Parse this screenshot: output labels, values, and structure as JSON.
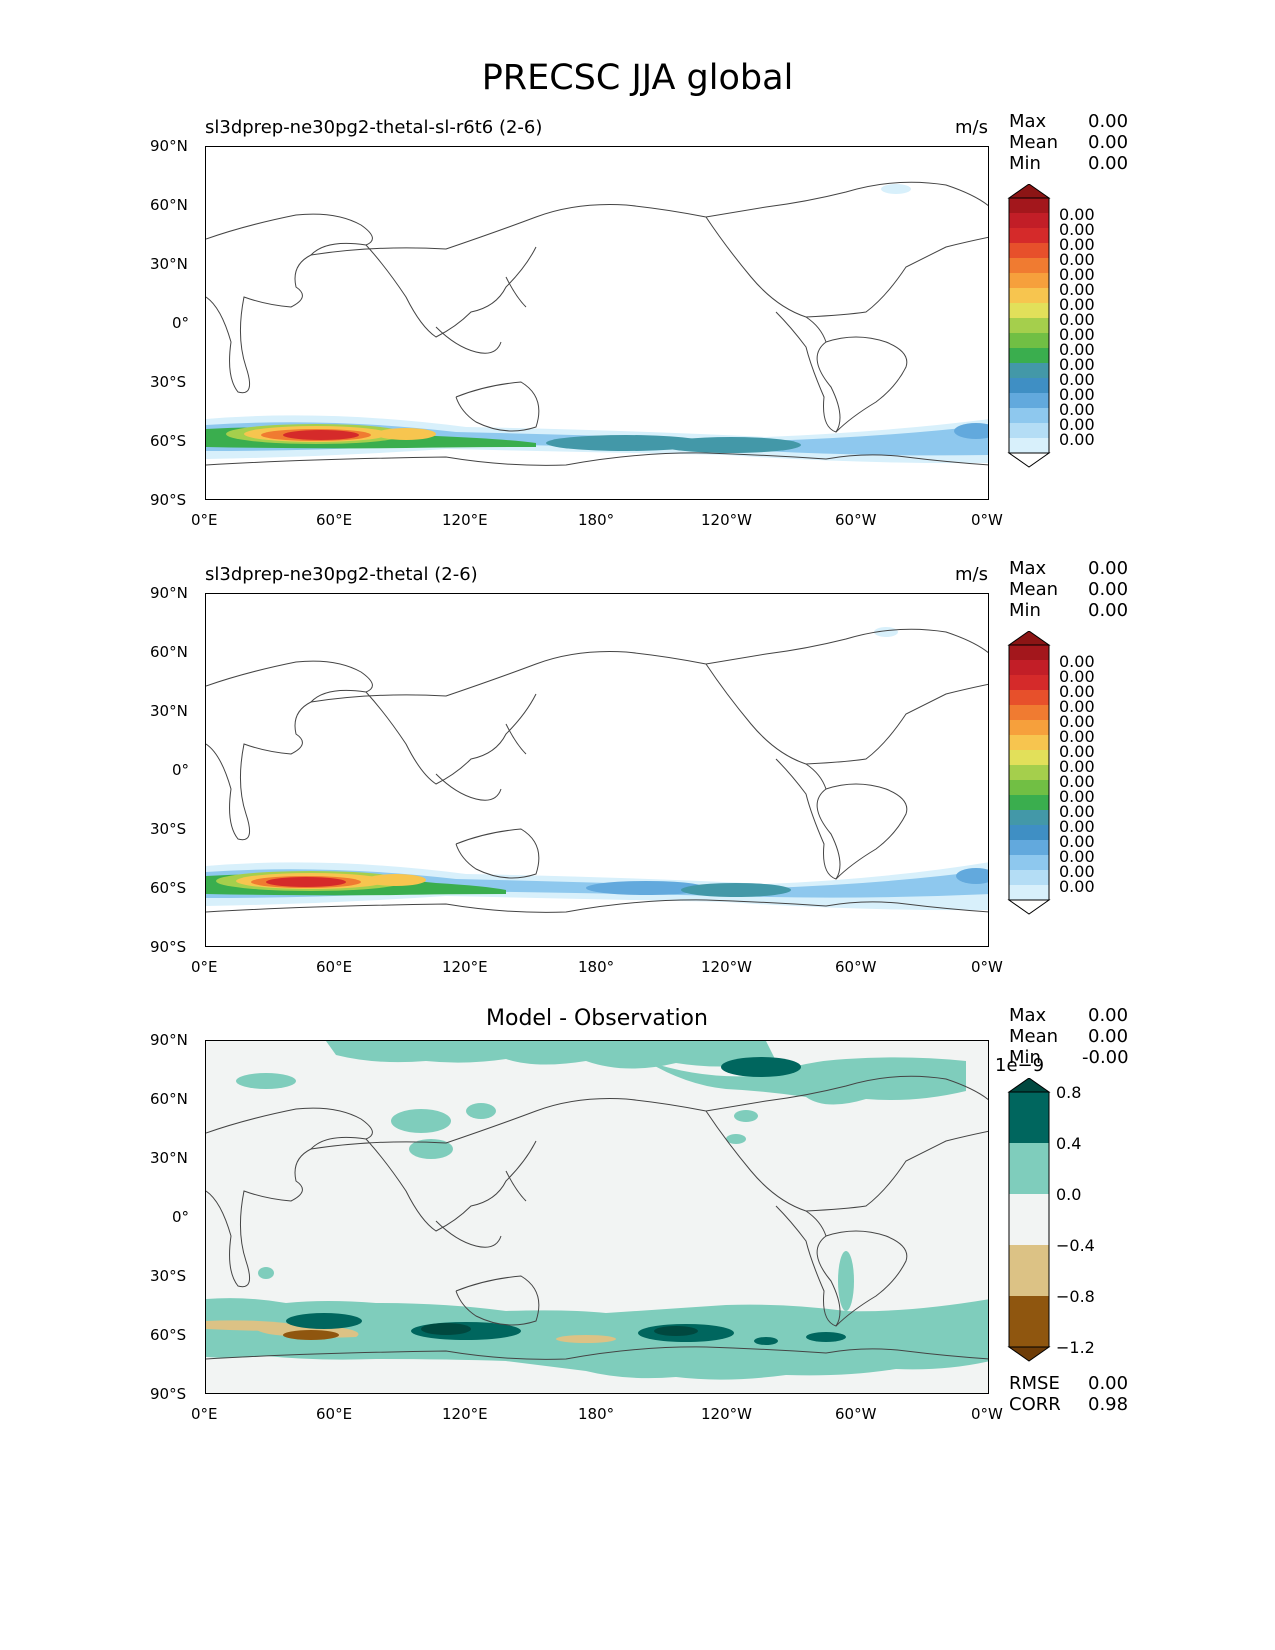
{
  "figure": {
    "title": "PRECSC JJA global"
  },
  "lat_ticks": [
    "90°N",
    "60°N",
    "30°N",
    "0°",
    "30°S",
    "60°S",
    "90°S"
  ],
  "lon_ticks": [
    "0°E",
    "60°E",
    "120°E",
    "180°",
    "120°W",
    "60°W",
    "0°W"
  ],
  "stat_labels": {
    "max": "Max",
    "mean": "Mean",
    "min": "Min",
    "rmse": "RMSE",
    "corr": "CORR"
  },
  "colors": {
    "precip_levels": [
      "#fffffe",
      "#d8f0fb",
      "#b4ddf5",
      "#8ec8ee",
      "#62a9dd",
      "#3f8fc4",
      "#4398a8",
      "#3aae4e",
      "#71bf44",
      "#a5cf4c",
      "#e2e05a",
      "#f7c54f",
      "#f6a03c",
      "#f07b31",
      "#e7502b",
      "#d52a2a",
      "#c21e27",
      "#a3171c",
      "#8c1515"
    ],
    "diff_levels": [
      "#6e3c07",
      "#8f560f",
      "#dcc285",
      "#f2f4f3",
      "#7fcdbc",
      "#00665e",
      "#00483f"
    ]
  },
  "panels": [
    {
      "title": "sl3dprep-ne30pg2-thetal-sl-r6t6 (2-6)",
      "units": "m/s",
      "stats": {
        "max": "0.00",
        "mean": "0.00",
        "min": "0.00"
      },
      "colorbar_labels": [
        "0.00",
        "0.00",
        "0.00",
        "0.00",
        "0.00",
        "0.00",
        "0.00",
        "0.00",
        "0.00",
        "0.00",
        "0.00",
        "0.00",
        "0.00",
        "0.00",
        "0.00",
        "0.00"
      ]
    },
    {
      "title": "sl3dprep-ne30pg2-thetal (2-6)",
      "units": "m/s",
      "stats": {
        "max": "0.00",
        "mean": "0.00",
        "min": "0.00"
      },
      "colorbar_labels": [
        "0.00",
        "0.00",
        "0.00",
        "0.00",
        "0.00",
        "0.00",
        "0.00",
        "0.00",
        "0.00",
        "0.00",
        "0.00",
        "0.00",
        "0.00",
        "0.00",
        "0.00",
        "0.00"
      ]
    },
    {
      "title": "Model - Observation",
      "stats": {
        "max": "0.00",
        "mean": "0.00",
        "min": "-0.00",
        "rmse": "0.00",
        "corr": "0.98"
      },
      "colorbar_scale": "1e−9",
      "colorbar_labels": [
        "0.8",
        "0.4",
        "0.0",
        "−0.4",
        "−0.8",
        "−1.2"
      ]
    }
  ]
}
